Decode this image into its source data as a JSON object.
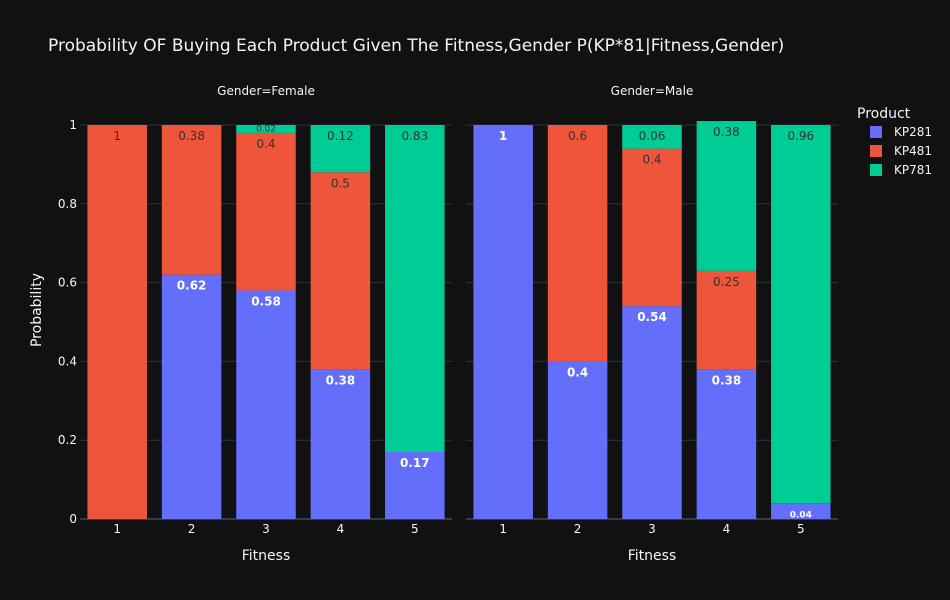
{
  "chart_data": {
    "type": "bar",
    "barmode": "stack",
    "title": "Probability OF Buying Each Product Given The Fitness,Gender P(KP*81|Fitness,Gender)",
    "xlabel": "Fitness",
    "ylabel": "Probability",
    "ylim": [
      0,
      1
    ],
    "yticks": [
      "0",
      "0.2",
      "0.4",
      "0.6",
      "0.8",
      "1"
    ],
    "categories": [
      "1",
      "2",
      "3",
      "4",
      "5"
    ],
    "legend": {
      "title": "Product",
      "placement": "top-right"
    },
    "grid": true,
    "colors": {
      "KP281": "#636efa",
      "KP481": "#ef553b",
      "KP781": "#00cc96"
    },
    "facets": [
      {
        "label": "Gender=Female",
        "series": [
          {
            "name": "KP281",
            "values": [
              0,
              0.62,
              0.58,
              0.38,
              0.17
            ],
            "labels": [
              "",
              "0.62",
              "0.58",
              "0.38",
              "0.17"
            ]
          },
          {
            "name": "KP481",
            "values": [
              1,
              0.38,
              0.4,
              0.5,
              0
            ],
            "labels": [
              "1",
              "0.38",
              "0.4",
              "0.5",
              ""
            ]
          },
          {
            "name": "KP781",
            "values": [
              0,
              0,
              0.02,
              0.12,
              0.83
            ],
            "labels": [
              "",
              "",
              "0.02",
              "0.12",
              "0.83"
            ]
          }
        ]
      },
      {
        "label": "Gender=Male",
        "series": [
          {
            "name": "KP281",
            "values": [
              1,
              0.4,
              0.54,
              0.38,
              0.04
            ],
            "labels": [
              "1",
              "0.4",
              "0.54",
              "0.38",
              "0.04"
            ]
          },
          {
            "name": "KP481",
            "values": [
              0,
              0.6,
              0.4,
              0.25,
              0
            ],
            "labels": [
              "",
              "0.6",
              "0.4",
              "0.25",
              ""
            ]
          },
          {
            "name": "KP781",
            "values": [
              0,
              0,
              0.06,
              0.38,
              0.96
            ],
            "labels": [
              "",
              "",
              "0.06",
              "0.38",
              "0.96"
            ]
          }
        ]
      }
    ]
  }
}
